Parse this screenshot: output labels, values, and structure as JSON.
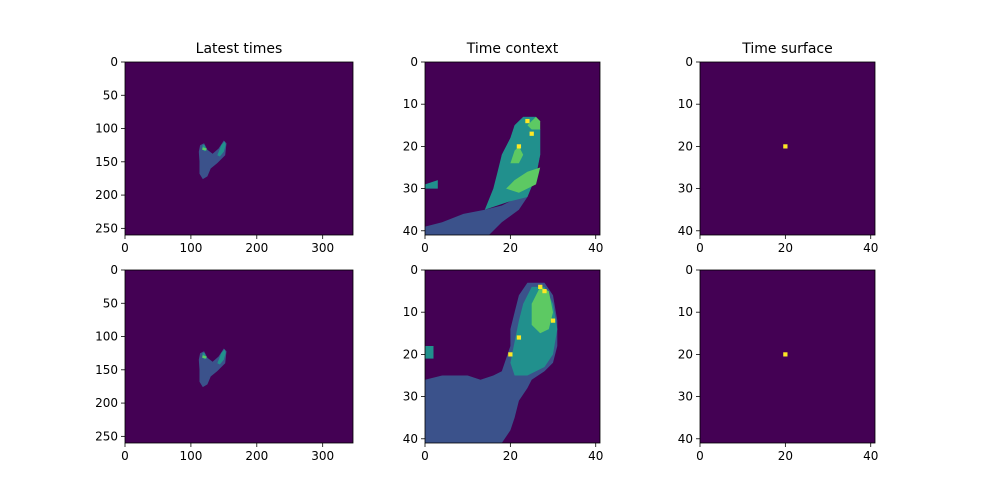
{
  "figure": {
    "background": "#ffffff",
    "colormap": "viridis",
    "colors": {
      "background_min": "#440154",
      "mid_blue": "#3b528b",
      "teal": "#21908d",
      "green": "#5dc963",
      "yellow": "#fde725"
    }
  },
  "chart_data": [
    {
      "type": "heatmap",
      "title": "Latest times",
      "xlim": [
        0,
        346
      ],
      "ylim": [
        260,
        0
      ],
      "xticks": [
        "0",
        "100",
        "200",
        "300"
      ],
      "yticks": [
        "0",
        "50",
        "100",
        "150",
        "200",
        "250"
      ],
      "grid": false,
      "content": "event-time blob centered near x=125, y=145"
    },
    {
      "type": "heatmap",
      "title": "Time context",
      "xlim": [
        0,
        41
      ],
      "ylim": [
        41,
        0
      ],
      "xticks": [
        "0",
        "20",
        "40"
      ],
      "yticks": [
        "0",
        "10",
        "20",
        "30",
        "40"
      ],
      "grid": false,
      "content": "41x41 local neighborhood of latest times"
    },
    {
      "type": "heatmap",
      "title": "Time surface",
      "xlim": [
        0,
        41
      ],
      "ylim": [
        41,
        0
      ],
      "xticks": [
        "0",
        "20",
        "40"
      ],
      "yticks": [
        "0",
        "10",
        "20",
        "30",
        "40"
      ],
      "grid": false,
      "hot_pixel": [
        20,
        20
      ]
    },
    {
      "type": "heatmap",
      "title": "",
      "xlim": [
        0,
        346
      ],
      "ylim": [
        260,
        0
      ],
      "xticks": [
        "0",
        "100",
        "200",
        "300"
      ],
      "yticks": [
        "0",
        "50",
        "100",
        "150",
        "200",
        "250"
      ],
      "grid": false,
      "content": "event-time blob centered near x=125, y=145"
    },
    {
      "type": "heatmap",
      "title": "",
      "xlim": [
        0,
        41
      ],
      "ylim": [
        41,
        0
      ],
      "xticks": [
        "0",
        "20",
        "40"
      ],
      "yticks": [
        "0",
        "10",
        "20",
        "30",
        "40"
      ],
      "grid": false,
      "content": "41x41 local neighborhood of latest times"
    },
    {
      "type": "heatmap",
      "title": "",
      "xlim": [
        0,
        41
      ],
      "ylim": [
        41,
        0
      ],
      "xticks": [
        "0",
        "20",
        "40"
      ],
      "yticks": [
        "0",
        "10",
        "20",
        "30",
        "40"
      ],
      "grid": false,
      "hot_pixel": [
        20,
        20
      ]
    }
  ]
}
